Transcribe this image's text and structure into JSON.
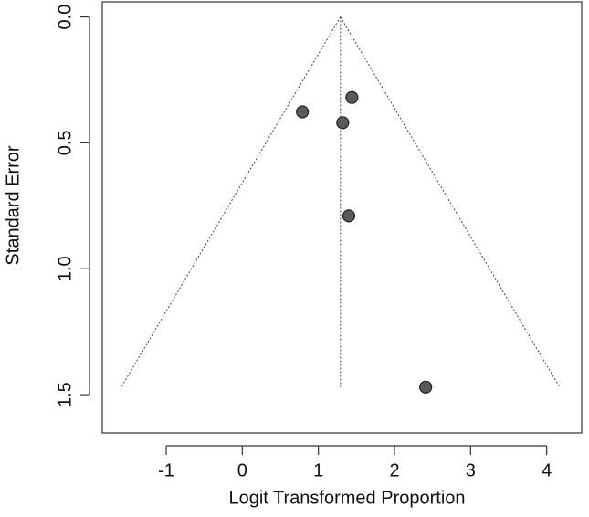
{
  "chart_data": {
    "type": "scatter",
    "x_label": "Logit Transformed Proportion",
    "y_label": "Standard Error",
    "x": [
      0.79,
      1.44,
      1.32,
      1.4,
      2.41
    ],
    "y": [
      0.377,
      0.32,
      0.42,
      0.79,
      1.47
    ],
    "color": "#5a5a5a",
    "reference_line": {
      "x": [
        1.29,
        1.29
      ],
      "y": [
        0,
        1.47
      ]
    },
    "funnel_lines": [
      {
        "x": [
          1.29,
          -1.59
        ],
        "y": [
          0,
          1.47
        ]
      },
      {
        "x": [
          1.29,
          4.17
        ],
        "y": [
          0,
          1.47
        ]
      }
    ],
    "xlim": [
      -1.84,
      4.46
    ],
    "ylim": [
      1.652,
      -0.06
    ],
    "xticks": [
      -1,
      0,
      1,
      2,
      3,
      4
    ],
    "yticks": [
      {
        "value": 0,
        "label": "0.0"
      },
      0.5,
      {
        "value": 1,
        "label": "1.0"
      },
      1.5
    ]
  }
}
